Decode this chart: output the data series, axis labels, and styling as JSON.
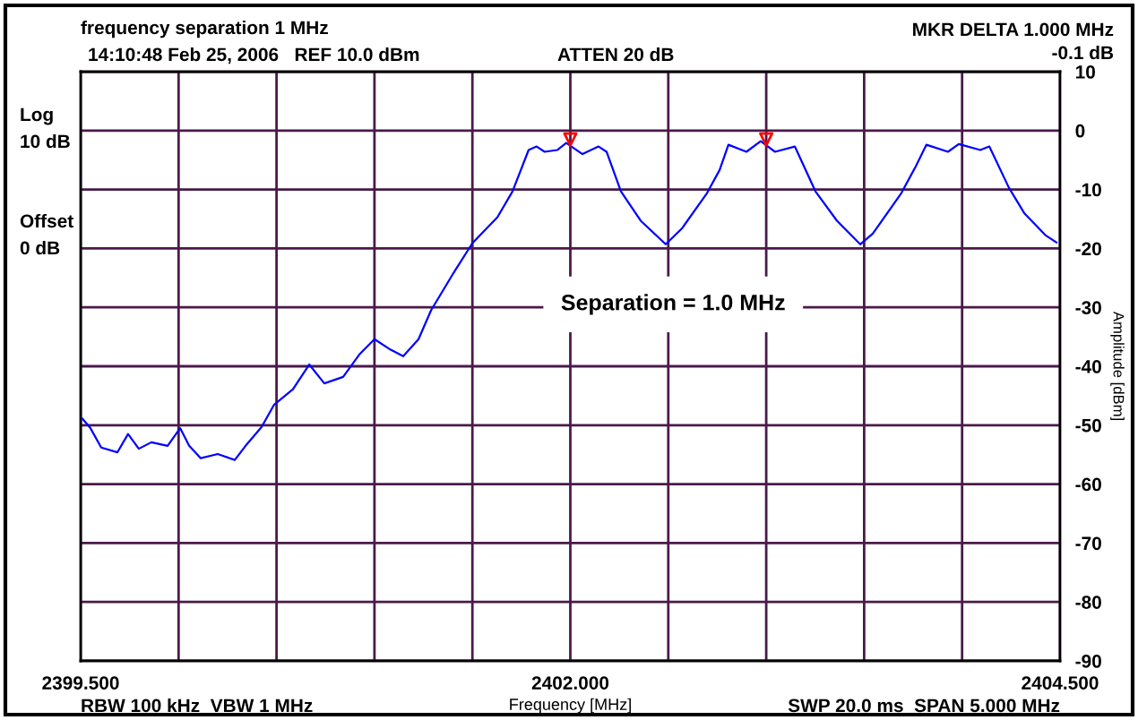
{
  "chart_data": {
    "type": "line",
    "title": "frequency separation 1 MHz",
    "subtitle": "14:10:48 Feb 25, 2006   REF 10.0 dBm",
    "xlabel": "Frequency [MHz]",
    "ylabel": "Amplitude [dBm]",
    "annotations": [
      "ATTEN 20 dB",
      "MKR DELTA 1.000 MHz",
      "-0.1 dB",
      "Log",
      "10 dB",
      "Offset",
      "0 dB",
      "RBW 100 kHz  VBW 1 MHz",
      "SWP 20.0 ms  SPAN 5.000 MHz",
      "Separation = 1.0 MHz"
    ],
    "xlim": [
      2399.5,
      2404.5
    ],
    "ylim": [
      -90,
      10
    ],
    "xticks": [
      {
        "value": 2399.5,
        "label": "2399.500"
      },
      {
        "value": 2400.0,
        "label": null
      },
      {
        "value": 2400.5,
        "label": null
      },
      {
        "value": 2401.0,
        "label": null
      },
      {
        "value": 2401.5,
        "label": null
      },
      {
        "value": 2402.0,
        "label": "2402.000"
      },
      {
        "value": 2402.5,
        "label": null
      },
      {
        "value": 2403.0,
        "label": null
      },
      {
        "value": 2403.5,
        "label": null
      },
      {
        "value": 2404.0,
        "label": null
      },
      {
        "value": 2404.5,
        "label": "2404.500"
      }
    ],
    "yticks": [
      10,
      0,
      -10,
      -20,
      -30,
      -40,
      -50,
      -60,
      -70,
      -80,
      -90
    ],
    "grid": true,
    "legend": false,
    "series": [
      {
        "color": "#0000ff",
        "marker": "none",
        "line_style": "solid",
        "x": [
          2399.509,
          2399.55,
          2399.605,
          2399.688,
          2399.742,
          2399.797,
          2399.861,
          2399.944,
          2400.008,
          2400.054,
          2400.113,
          2400.2,
          2400.287,
          2400.342,
          2400.424,
          2400.488,
          2400.584,
          2400.667,
          2400.744,
          2400.84,
          2400.923,
          2401.0,
          2401.083,
          2401.147,
          2401.225,
          2401.289,
          2401.403,
          2401.5,
          2401.628,
          2401.705,
          2401.787,
          2401.828,
          2401.869,
          2401.933,
          2401.979,
          2402.062,
          2402.144,
          2402.185,
          2402.258,
          2402.359,
          2402.487,
          2402.57,
          2402.698,
          2402.762,
          2402.807,
          2402.899,
          2402.972,
          2403.045,
          2403.146,
          2403.251,
          2403.361,
          2403.48,
          2403.544,
          2403.69,
          2403.763,
          2403.818,
          2403.928,
          2403.983,
          2404.093,
          2404.139,
          2404.239,
          2404.317,
          2404.427,
          2404.482
        ],
        "values": [
          -48.9,
          -50.5,
          -53.8,
          -54.6,
          -51.5,
          -54,
          -52.9,
          -53.5,
          -50.5,
          -53.5,
          -55.6,
          -54.9,
          -55.9,
          -53.5,
          -50.3,
          -46.5,
          -43.9,
          -39.7,
          -42.9,
          -41.8,
          -38,
          -35.4,
          -37.2,
          -38.3,
          -35.4,
          -30.5,
          -24.2,
          -19.1,
          -14.7,
          -10.3,
          -3.3,
          -2.7,
          -3.6,
          -3.3,
          -2.1,
          -4.0,
          -2.7,
          -3.6,
          -10.3,
          -15.3,
          -19.3,
          -16.6,
          -10.6,
          -6.7,
          -2.4,
          -3.6,
          -1.8,
          -3.6,
          -2.7,
          -10.3,
          -15.3,
          -19.3,
          -17.5,
          -10.6,
          -6.1,
          -2.4,
          -3.6,
          -2.3,
          -3.3,
          -2.7,
          -9.7,
          -14.0,
          -17.8,
          -19.0
        ]
      },
      {
        "color": "#ff0000",
        "type": "scatter",
        "marker": "triangle",
        "x": [
          2402.0,
          2403.0
        ],
        "values": [
          -1.5,
          -1.5
        ]
      }
    ]
  }
}
